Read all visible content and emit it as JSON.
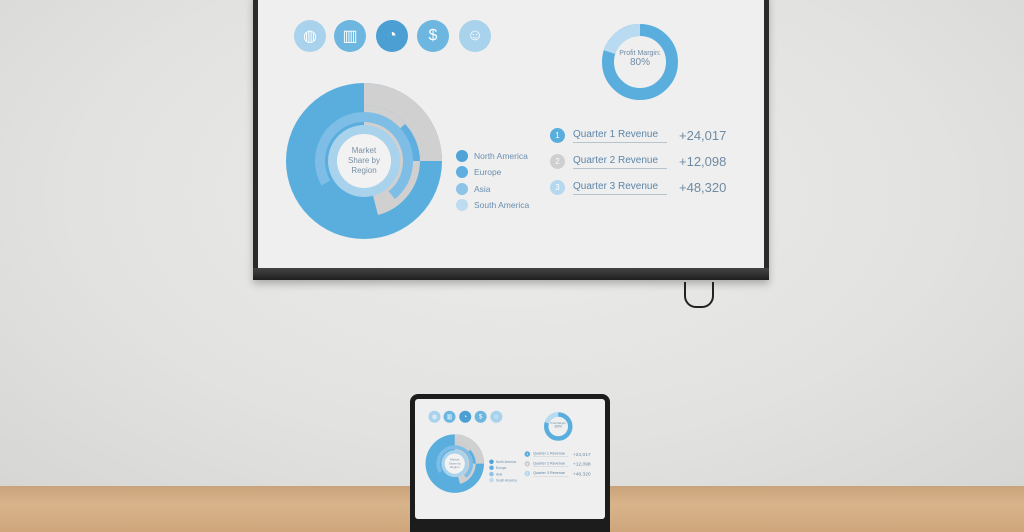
{
  "dashboard": {
    "icons": [
      {
        "name": "globe-icon",
        "glyph": "◍",
        "color": "#a9d2ec"
      },
      {
        "name": "bar-chart-icon",
        "glyph": "▥",
        "color": "#6cb6e0"
      },
      {
        "name": "pie-chart-icon",
        "glyph": "◔",
        "color": "#4c9fd2"
      },
      {
        "name": "dollar-icon",
        "glyph": "$",
        "color": "#6cb6e0"
      },
      {
        "name": "user-icon",
        "glyph": "☺",
        "color": "#a9d2ec"
      }
    ],
    "profit_margin": {
      "label": "Profit Margin:",
      "value": "80%",
      "percent": 80
    },
    "market_share": {
      "title_line1": "Market",
      "title_line2": "Share by",
      "title_line3": "Region"
    },
    "legend": [
      {
        "label": "North America",
        "color": "#4fa3d6"
      },
      {
        "label": "Europe",
        "color": "#5eaee0"
      },
      {
        "label": "Asia",
        "color": "#8cc3e6"
      },
      {
        "label": "South America",
        "color": "#bddcf0"
      }
    ],
    "quarters": [
      {
        "num": "1",
        "label": "Quarter 1 Revenue",
        "value": "+24,017",
        "color": "#5aaede"
      },
      {
        "num": "2",
        "label": "Quarter 2 Revenue",
        "value": "+12,098",
        "color": "#cfcfcf"
      },
      {
        "num": "3",
        "label": "Quarter 3 Revenue",
        "value": "+48,320",
        "color": "#b5d8ef"
      }
    ]
  }
}
